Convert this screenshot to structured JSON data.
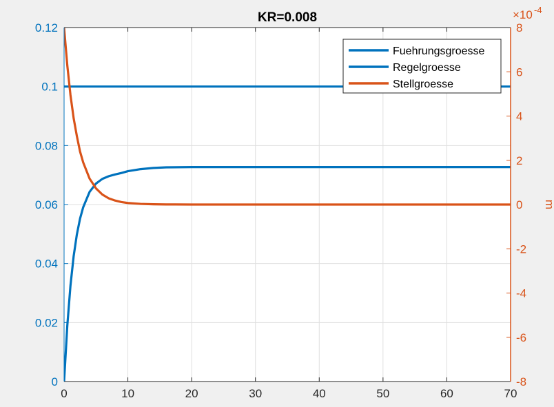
{
  "chart_data": {
    "type": "line",
    "title": "KR=0.008",
    "xlabel": "",
    "ylabel_left": "",
    "ylabel_right": "m",
    "x_ticks": [
      "0",
      "10",
      "20",
      "30",
      "40",
      "50",
      "60",
      "70"
    ],
    "y_left_ticks": [
      "0",
      "0.02",
      "0.04",
      "0.06",
      "0.08",
      "0.1",
      "0.12"
    ],
    "y_right_ticks": [
      "-8",
      "-6",
      "-4",
      "-2",
      "0",
      "2",
      "4",
      "6",
      "8"
    ],
    "y_right_exponent_base": "×10",
    "y_right_exponent_power": "-4",
    "xlim": [
      0,
      70
    ],
    "ylim_left": [
      0,
      0.12
    ],
    "ylim_right": [
      -0.0008,
      0.0008
    ],
    "grid": true,
    "legend_location": "top-right",
    "series": [
      {
        "name": "Fuehrungsgroesse",
        "axis": "left",
        "color": "#0072bd",
        "x": [
          0,
          70
        ],
        "y": [
          0.1,
          0.1
        ]
      },
      {
        "name": "Regelgroesse",
        "axis": "left",
        "color": "#0072bd",
        "x": [
          0,
          0.5,
          1,
          1.5,
          2,
          2.5,
          3,
          4,
          5,
          6,
          7,
          8,
          9,
          10,
          12,
          14,
          16,
          20,
          30,
          40,
          50,
          60,
          70
        ],
        "y": [
          0,
          0.0188,
          0.0325,
          0.0425,
          0.0498,
          0.0552,
          0.0591,
          0.0643,
          0.0671,
          0.0687,
          0.0696,
          0.0702,
          0.0707,
          0.0713,
          0.072,
          0.0724,
          0.0726,
          0.0727,
          0.0727,
          0.0727,
          0.0727,
          0.0727,
          0.0727
        ]
      },
      {
        "name": "Stellgroesse",
        "axis": "right",
        "color": "#d95319",
        "x": [
          0,
          0.5,
          1,
          1.5,
          2,
          2.5,
          3,
          4,
          5,
          6,
          7,
          8,
          9,
          10,
          12,
          14,
          16,
          20,
          30,
          40,
          50,
          60,
          70
        ],
        "y": [
          0.0008,
          0.00063,
          0.000495,
          0.00039,
          0.00031,
          0.00024,
          0.00019,
          0.000117,
          7.3e-05,
          4.5e-05,
          2.8e-05,
          1.8e-05,
          1.1e-05,
          7e-06,
          3e-06,
          1.2e-06,
          5e-07,
          0,
          0,
          0,
          0,
          0,
          0
        ]
      }
    ]
  }
}
